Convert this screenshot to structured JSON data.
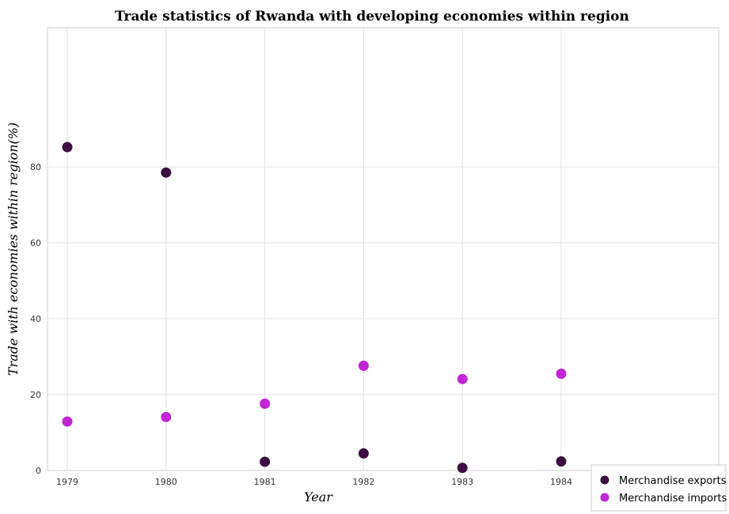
{
  "chart_data": {
    "type": "scatter",
    "title": "Trade statistics of Rwanda with developing economies within region",
    "xlabel": "Year",
    "ylabel": "Trade with economies within region(%)",
    "categories": [
      "1979",
      "1980",
      "1981",
      "1982",
      "1983",
      "1984"
    ],
    "ylim": [
      0,
      90
    ],
    "yticks": [
      "0",
      "20",
      "40",
      "60",
      "80"
    ],
    "grid": true,
    "legend_position": "bottom-right",
    "series": [
      {
        "name": "Merchandise exports",
        "color": "#3b0f3f",
        "values": [
          85.2,
          78.5,
          2.3,
          4.5,
          0.7,
          2.4
        ]
      },
      {
        "name": "Merchandise imports",
        "color": "#c026d3",
        "values": [
          12.9,
          14.1,
          17.6,
          27.6,
          24.1,
          25.5
        ]
      }
    ]
  }
}
